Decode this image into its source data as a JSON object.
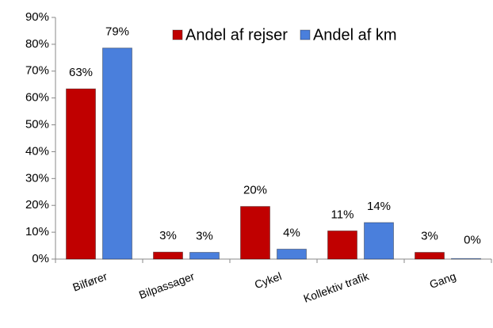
{
  "chart_data": {
    "type": "bar",
    "categories": [
      "Bilfører",
      "Bilpassager",
      "Cykel",
      "Kollektiv trafik",
      "Gang"
    ],
    "series": [
      {
        "name": "Andel af rejser",
        "color": "#c00000",
        "values": [
          63.4,
          2.6,
          19.6,
          10.5,
          2.5
        ],
        "value_labels": [
          "63%",
          "3%",
          "20%",
          "11%",
          "3%"
        ]
      },
      {
        "name": "Andel af km",
        "color": "#4a7fdc",
        "values": [
          78.6,
          2.5,
          3.7,
          13.6,
          0.2
        ],
        "value_labels": [
          "79%",
          "3%",
          "4%",
          "14%",
          "0%"
        ]
      }
    ],
    "ylim": [
      0,
      90
    ],
    "yticks": [
      {
        "value": 0,
        "label": "0%"
      },
      {
        "value": 10,
        "label": "10%"
      },
      {
        "value": 20,
        "label": "20%"
      },
      {
        "value": 30,
        "label": "30%"
      },
      {
        "value": 40,
        "label": "40%"
      },
      {
        "value": 50,
        "label": "50%"
      },
      {
        "value": 60,
        "label": "60%"
      },
      {
        "value": 70,
        "label": "70%"
      },
      {
        "value": 80,
        "label": "80%"
      },
      {
        "value": 90,
        "label": "90%"
      }
    ],
    "grid": false,
    "legend": "top"
  }
}
